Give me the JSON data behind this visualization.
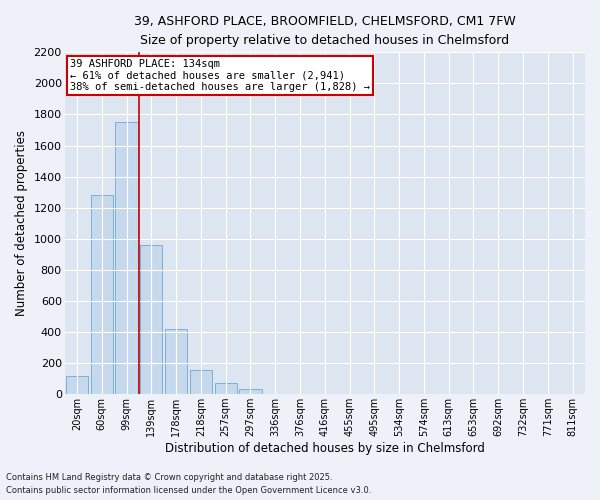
{
  "title": "39, ASHFORD PLACE, BROOMFIELD, CHELMSFORD, CM1 7FW",
  "subtitle": "Size of property relative to detached houses in Chelmsford",
  "xlabel": "Distribution of detached houses by size in Chelmsford",
  "ylabel": "Number of detached properties",
  "categories": [
    "20sqm",
    "60sqm",
    "99sqm",
    "139sqm",
    "178sqm",
    "218sqm",
    "257sqm",
    "297sqm",
    "336sqm",
    "376sqm",
    "416sqm",
    "455sqm",
    "495sqm",
    "534sqm",
    "574sqm",
    "613sqm",
    "653sqm",
    "692sqm",
    "732sqm",
    "771sqm",
    "811sqm"
  ],
  "values": [
    120,
    1280,
    1750,
    960,
    420,
    155,
    70,
    35,
    0,
    0,
    0,
    0,
    0,
    0,
    0,
    0,
    0,
    0,
    0,
    0,
    0
  ],
  "bar_color": "#c5d8ec",
  "bar_edge_color": "#6fa8d4",
  "vline_x": 2.5,
  "vline_color": "#cc0000",
  "annotation_text": "39 ASHFORD PLACE: 134sqm\n← 61% of detached houses are smaller (2,941)\n38% of semi-detached houses are larger (1,828) →",
  "annotation_box_color": "#cc0000",
  "ylim": [
    0,
    2200
  ],
  "yticks": [
    0,
    200,
    400,
    600,
    800,
    1000,
    1200,
    1400,
    1600,
    1800,
    2000,
    2200
  ],
  "footnote1": "Contains HM Land Registry data © Crown copyright and database right 2025.",
  "footnote2": "Contains public sector information licensed under the Open Government Licence v3.0.",
  "fig_bg_color": "#eef2f8",
  "plot_bg_color": "#dde6f0"
}
